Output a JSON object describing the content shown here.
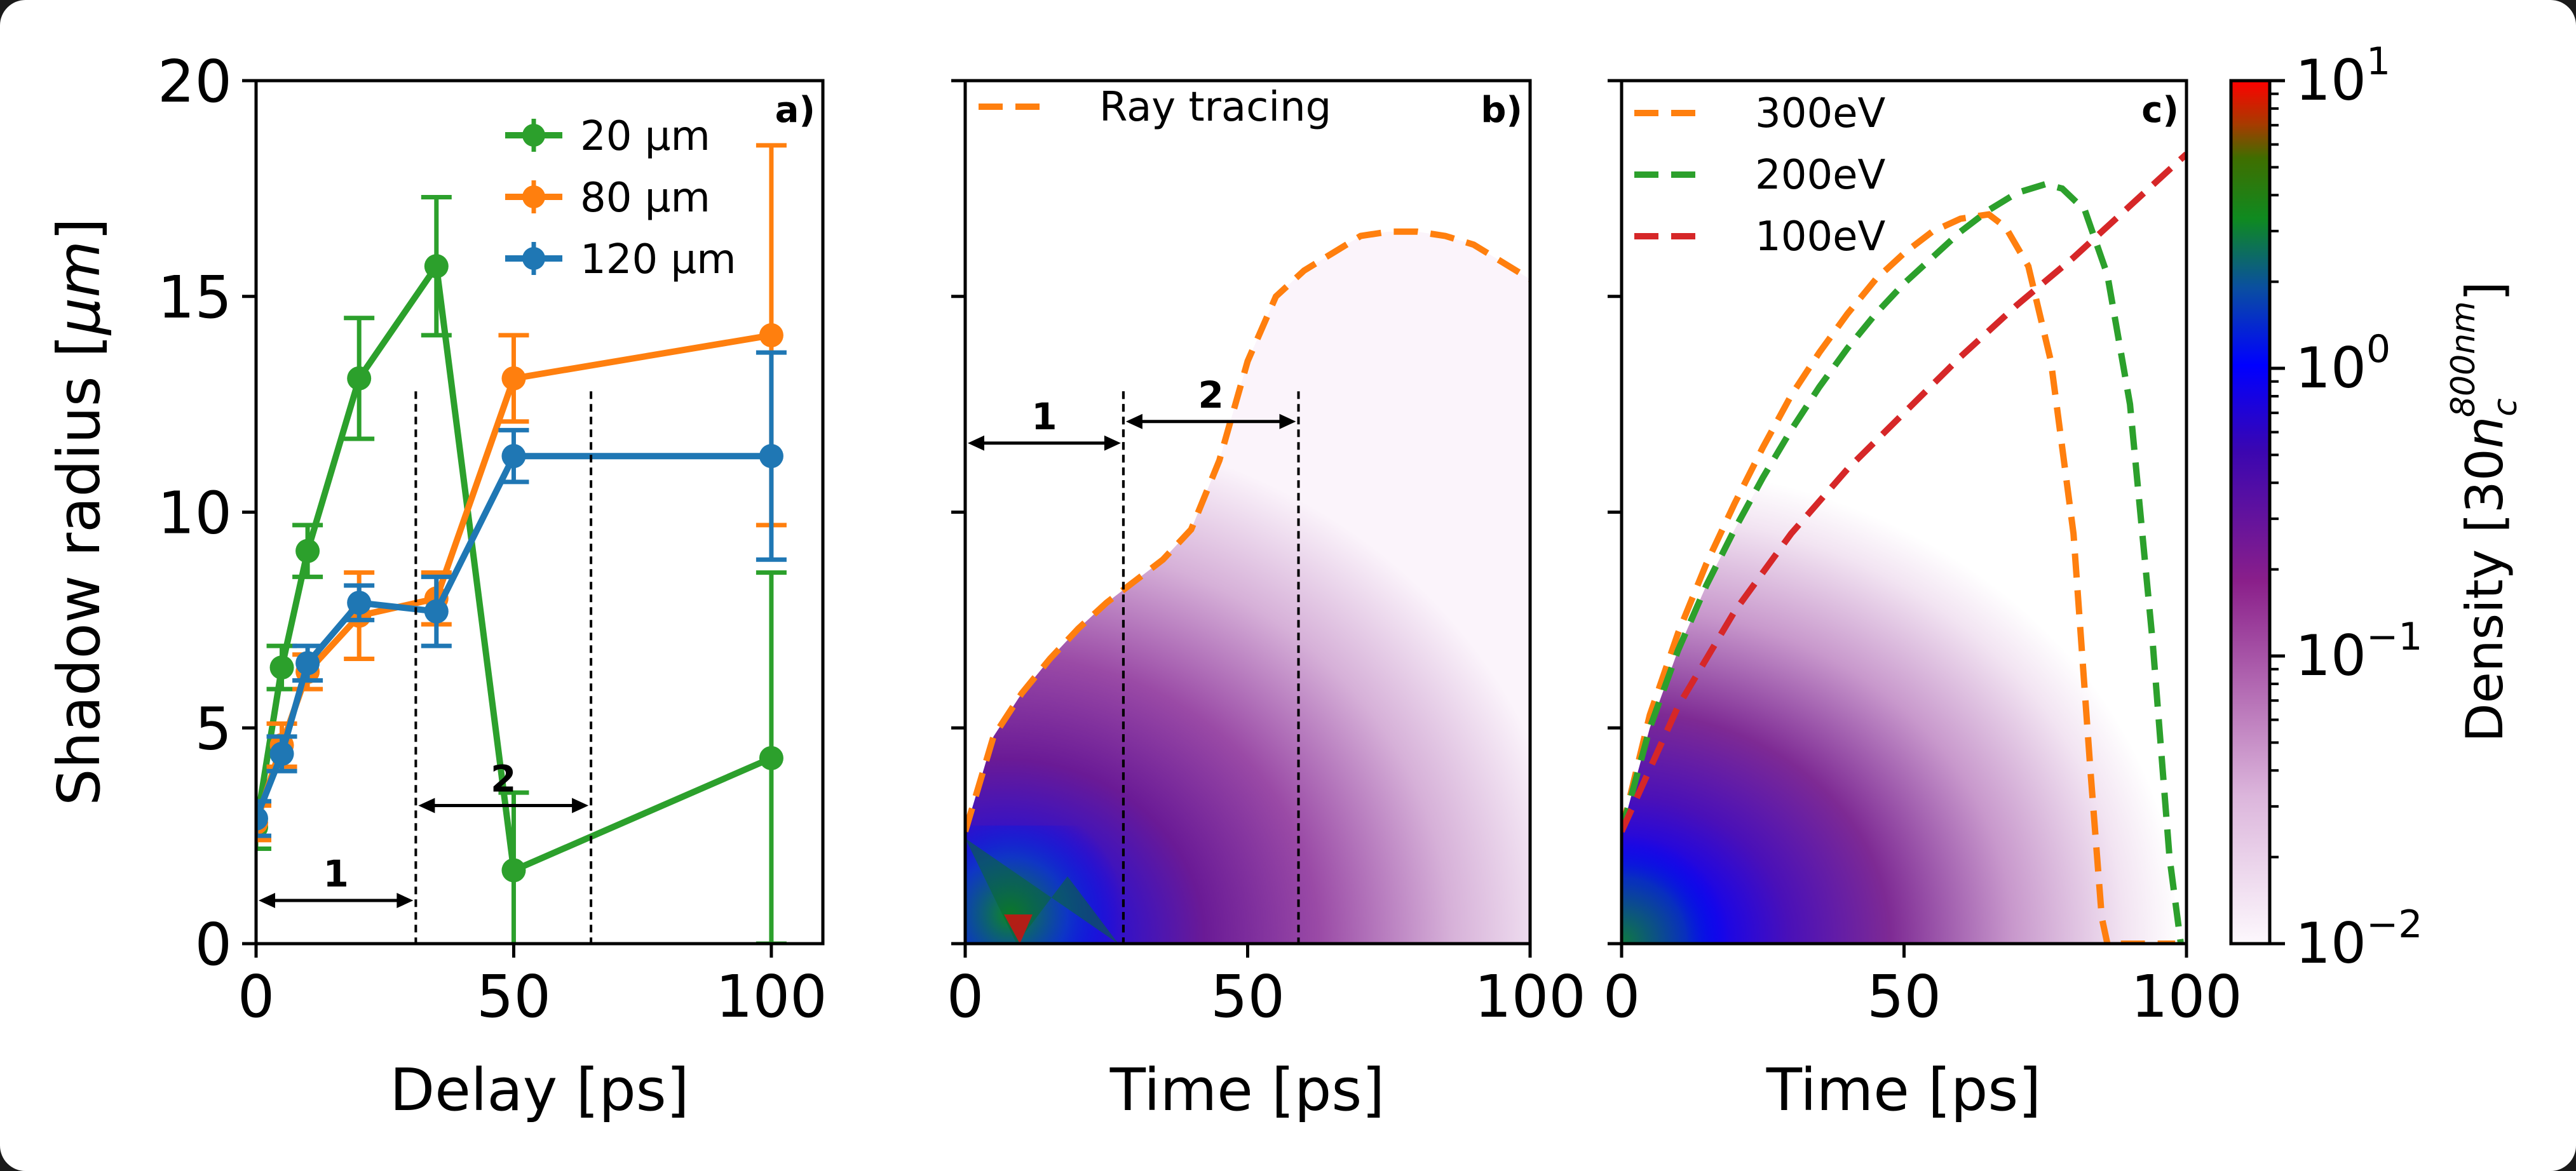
{
  "chart_data": [
    {
      "panel": "a",
      "type": "line",
      "panel_label": "a)",
      "xlabel": "Delay [ps]",
      "ylabel": "Shadow radius [μm]",
      "xlim": [
        0,
        110
      ],
      "ylim": [
        0,
        20
      ],
      "xticks": [
        0,
        50,
        100
      ],
      "yticks": [
        0,
        5,
        10,
        15,
        20
      ],
      "legend_position": "top-right",
      "series": [
        {
          "name": "20 μm",
          "color": "#2ca02c",
          "x": [
            0,
            5,
            10,
            20,
            35,
            50,
            100
          ],
          "y": [
            2.7,
            6.4,
            9.1,
            13.1,
            15.7,
            1.7,
            4.3
          ],
          "err": [
            0.5,
            0.5,
            0.6,
            1.4,
            1.6,
            1.8,
            4.3
          ]
        },
        {
          "name": "80 μm",
          "color": "#ff7f0e",
          "x": [
            0,
            5,
            10,
            20,
            35,
            50,
            100
          ],
          "y": [
            2.8,
            4.6,
            6.3,
            7.6,
            8.0,
            13.1,
            14.1
          ],
          "err": [
            0.4,
            0.5,
            0.4,
            1.0,
            0.6,
            1.0,
            4.4
          ]
        },
        {
          "name": "120 μm",
          "color": "#1f77b4",
          "x": [
            0,
            5,
            10,
            20,
            35,
            50,
            100
          ],
          "y": [
            2.9,
            4.4,
            6.5,
            7.9,
            7.7,
            11.3,
            11.3
          ],
          "err": [
            0.4,
            0.4,
            0.4,
            0.4,
            0.8,
            0.6,
            2.4
          ]
        }
      ],
      "annotations": [
        {
          "label": "1",
          "x_from": 0,
          "x_to": 31,
          "y": 1.0,
          "guide_x": null
        },
        {
          "label": "2",
          "x_from": 31,
          "x_to": 65,
          "y": 3.2,
          "guide_x": [
            31,
            65
          ]
        }
      ]
    },
    {
      "panel": "b",
      "type": "heatmap",
      "panel_label": "b)",
      "xlabel": "Time [ps]",
      "xlim": [
        0,
        100
      ],
      "ylim": [
        0,
        20
      ],
      "xticks": [
        0,
        50,
        100
      ],
      "legend_position": "top-left",
      "series": [
        {
          "name": "Ray tracing",
          "color": "#ff7f0e",
          "style": "dashed",
          "x": [
            0,
            5,
            10,
            15,
            20,
            25,
            30,
            35,
            40,
            45,
            50,
            55,
            60,
            65,
            70,
            75,
            80,
            85,
            90,
            95,
            100
          ],
          "y": [
            2.6,
            4.8,
            5.8,
            6.6,
            7.3,
            7.9,
            8.4,
            8.9,
            9.6,
            11.2,
            13.5,
            15.0,
            15.6,
            16.0,
            16.4,
            16.5,
            16.5,
            16.4,
            16.2,
            15.8,
            15.4
          ]
        }
      ],
      "annotations": [
        {
          "label": "1",
          "x_from": 0,
          "x_to": 28,
          "y": 11.6,
          "guide_x": [
            28
          ]
        },
        {
          "label": "2",
          "x_from": 28,
          "x_to": 59,
          "y": 12.1,
          "guide_x": [
            28,
            59
          ]
        }
      ]
    },
    {
      "panel": "c",
      "type": "heatmap",
      "panel_label": "c)",
      "xlabel": "Time [ps]",
      "xlim": [
        0,
        100
      ],
      "ylim": [
        0,
        20
      ],
      "xticks": [
        0,
        50,
        100
      ],
      "legend_position": "top-left",
      "series": [
        {
          "name": "300eV",
          "color": "#ff7f0e",
          "style": "dashed",
          "x": [
            0,
            5,
            10,
            15,
            20,
            25,
            30,
            35,
            40,
            45,
            50,
            55,
            60,
            65,
            68,
            72,
            76,
            80,
            83,
            85,
            86,
            90,
            95,
            98
          ],
          "y": [
            2.6,
            5.3,
            7.2,
            8.8,
            10.2,
            11.5,
            12.7,
            13.7,
            14.6,
            15.4,
            16.0,
            16.5,
            16.8,
            16.9,
            16.6,
            15.7,
            13.5,
            9.5,
            4.0,
            0.6,
            0.0,
            0.0,
            0.0,
            0.0
          ]
        },
        {
          "name": "200eV",
          "color": "#2ca02c",
          "style": "dashed",
          "x": [
            0,
            5,
            10,
            15,
            20,
            25,
            30,
            35,
            40,
            45,
            50,
            55,
            60,
            65,
            70,
            75,
            78,
            82,
            86,
            90,
            94,
            97,
            99
          ],
          "y": [
            2.6,
            5.0,
            6.8,
            8.3,
            9.6,
            10.8,
            11.9,
            12.9,
            13.8,
            14.6,
            15.3,
            15.9,
            16.5,
            17.0,
            17.4,
            17.6,
            17.5,
            17.0,
            15.5,
            12.5,
            7.0,
            2.0,
            0.0
          ]
        },
        {
          "name": "100eV",
          "color": "#d62728",
          "style": "dashed",
          "x": [
            0,
            10,
            20,
            30,
            40,
            50,
            60,
            70,
            80,
            90,
            100
          ],
          "y": [
            2.6,
            5.5,
            7.7,
            9.5,
            11.0,
            12.3,
            13.6,
            14.8,
            15.9,
            17.1,
            18.3
          ]
        }
      ]
    },
    {
      "panel": "colorbar",
      "type": "heatmap",
      "label": "Density [30n_c^800nm]",
      "label_main": "Density [30",
      "label_n": "n",
      "label_sub": "c",
      "label_sup": "800nm",
      "label_close": "]",
      "scale": "log",
      "range": [
        0.01,
        10
      ],
      "ticks": [
        {
          "value": 10,
          "base": "10",
          "exp": "1"
        },
        {
          "value": 1,
          "base": "10",
          "exp": "0"
        },
        {
          "value": 0.1,
          "base": "10",
          "exp": "−1"
        },
        {
          "value": 0.01,
          "base": "10",
          "exp": "−2"
        }
      ]
    }
  ]
}
